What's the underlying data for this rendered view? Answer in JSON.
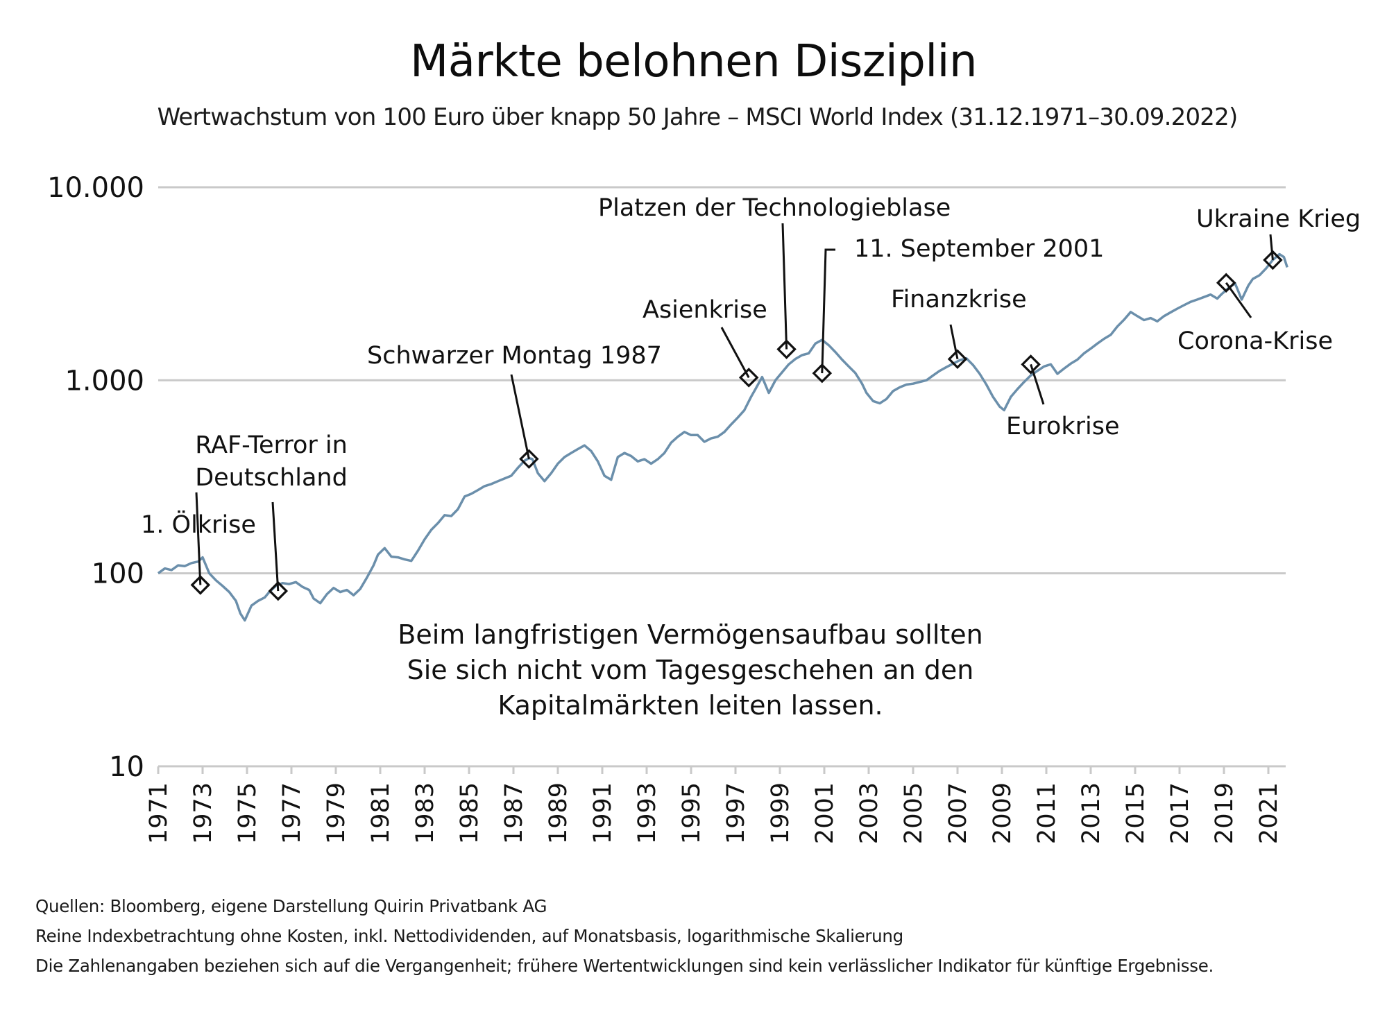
{
  "title": "Märkte belohnen Disziplin",
  "subtitle": "Wertwachstum von 100 Euro über knapp 50 Jahre – MSCI World Index (31.12.1971–30.09.2022)",
  "footer": {
    "source": "Quellen: Bloomberg, eigene Darstellung Quirin Privatbank AG",
    "method": "Reine Indexbetrachtung ohne Kosten, inkl. Nettodividenden, auf Monatsbasis, logarithmische Skalierung",
    "disclaimer": "Die Zahlenangaben beziehen sich auf die Vergangenheit; frühere Wertentwicklungen sind kein verlässlicher Indikator für künftige Ergebnisse."
  },
  "colors": {
    "line": "#6b8fab",
    "grid": "#c9c9c9",
    "marker": "#111111",
    "text": "#111111"
  },
  "chart_data": {
    "type": "line",
    "title": "Märkte belohnen Disziplin",
    "xlabel": "",
    "ylabel": "",
    "yscale": "log",
    "ylim": [
      10,
      10000
    ],
    "xlim": [
      1971,
      2021.8
    ],
    "grid": true,
    "y_ticks": [
      {
        "value": 10000,
        "label": "10.000"
      },
      {
        "value": 1000,
        "label": "1.000"
      },
      {
        "value": 100,
        "label": "100"
      },
      {
        "value": 10,
        "label": "10"
      }
    ],
    "x_ticks": [
      "1971",
      "1973",
      "1975",
      "1977",
      "1979",
      "1981",
      "1983",
      "1985",
      "1987",
      "1989",
      "1991",
      "1993",
      "1995",
      "1997",
      "1999",
      "2001",
      "2003",
      "2005",
      "2007",
      "2009",
      "2011",
      "2013",
      "2015",
      "2017",
      "2019",
      "2021"
    ],
    "series": [
      {
        "name": "MSCI World Index (100 Euro)",
        "x": [
          1971.0,
          1971.3,
          1971.6,
          1971.9,
          1972.2,
          1972.5,
          1972.8,
          1973.0,
          1973.3,
          1973.6,
          1973.9,
          1974.2,
          1974.5,
          1974.7,
          1974.9,
          1975.2,
          1975.5,
          1975.8,
          1976.0,
          1976.3,
          1976.6,
          1976.9,
          1977.2,
          1977.5,
          1977.8,
          1978.0,
          1978.3,
          1978.6,
          1978.9,
          1979.2,
          1979.5,
          1979.8,
          1980.1,
          1980.4,
          1980.7,
          1980.9,
          1981.2,
          1981.5,
          1981.8,
          1982.1,
          1982.4,
          1982.7,
          1983.0,
          1983.3,
          1983.6,
          1983.9,
          1984.2,
          1984.5,
          1984.8,
          1985.1,
          1985.4,
          1985.7,
          1986.0,
          1986.3,
          1986.6,
          1986.9,
          1987.2,
          1987.5,
          1987.7,
          1987.85,
          1988.1,
          1988.4,
          1988.7,
          1989.0,
          1989.3,
          1989.6,
          1989.9,
          1990.2,
          1990.5,
          1990.8,
          1991.1,
          1991.4,
          1991.7,
          1992.0,
          1992.3,
          1992.6,
          1992.9,
          1993.2,
          1993.5,
          1993.8,
          1994.1,
          1994.4,
          1994.7,
          1995.0,
          1995.3,
          1995.6,
          1995.9,
          1996.2,
          1996.5,
          1996.8,
          1997.1,
          1997.4,
          1997.7,
          1997.9,
          1998.2,
          1998.5,
          1998.8,
          1999.1,
          1999.4,
          1999.7,
          2000.0,
          2000.3,
          2000.6,
          2000.9,
          2001.2,
          2001.5,
          2001.8,
          2002.1,
          2002.4,
          2002.7,
          2002.9,
          2003.2,
          2003.5,
          2003.8,
          2004.1,
          2004.4,
          2004.7,
          2005.0,
          2005.3,
          2005.6,
          2005.9,
          2006.2,
          2006.5,
          2006.8,
          2007.1,
          2007.4,
          2007.7,
          2008.0,
          2008.3,
          2008.6,
          2008.9,
          2009.1,
          2009.4,
          2009.7,
          2010.0,
          2010.3,
          2010.6,
          2010.9,
          2011.2,
          2011.5,
          2011.8,
          2012.1,
          2012.4,
          2012.7,
          2013.0,
          2013.3,
          2013.6,
          2013.9,
          2014.2,
          2014.5,
          2014.8,
          2015.1,
          2015.4,
          2015.7,
          2016.0,
          2016.3,
          2016.6,
          2016.9,
          2017.2,
          2017.5,
          2017.8,
          2018.1,
          2018.4,
          2018.7,
          2018.9,
          2019.2,
          2019.5,
          2019.8,
          2020.1,
          2020.3,
          2020.6,
          2020.9,
          2021.2,
          2021.5,
          2021.7,
          2021.85
        ],
        "y": [
          100,
          106,
          104,
          110,
          109,
          113,
          115,
          121,
          100,
          92,
          86,
          80,
          72,
          62,
          57,
          68,
          72,
          75,
          80,
          86,
          89,
          88,
          90,
          85,
          82,
          74,
          70,
          78,
          84,
          80,
          82,
          77,
          83,
          95,
          110,
          125,
          135,
          122,
          121,
          118,
          116,
          131,
          150,
          168,
          182,
          200,
          198,
          215,
          250,
          258,
          270,
          283,
          290,
          300,
          310,
          320,
          352,
          383,
          395,
          391,
          330,
          300,
          330,
          370,
          400,
          420,
          440,
          460,
          430,
          380,
          320,
          305,
          400,
          420,
          405,
          380,
          390,
          370,
          390,
          420,
          475,
          510,
          540,
          520,
          520,
          480,
          500,
          510,
          540,
          590,
          640,
          700,
          820,
          900,
          1040,
          860,
          1000,
          1100,
          1210,
          1290,
          1350,
          1380,
          1550,
          1620,
          1520,
          1400,
          1280,
          1180,
          1090,
          960,
          860,
          780,
          760,
          800,
          880,
          920,
          950,
          960,
          980,
          1000,
          1060,
          1120,
          1170,
          1220,
          1270,
          1300,
          1200,
          1080,
          950,
          820,
          730,
          700,
          820,
          900,
          980,
          1060,
          1120,
          1180,
          1210,
          1080,
          1150,
          1220,
          1280,
          1380,
          1460,
          1550,
          1640,
          1720,
          1900,
          2060,
          2260,
          2150,
          2050,
          2100,
          2020,
          2150,
          2250,
          2350,
          2450,
          2550,
          2620,
          2700,
          2780,
          2650,
          2800,
          3000,
          3180,
          2620,
          3100,
          3350,
          3500,
          3800,
          4200,
          4500,
          4350,
          3850
        ]
      }
    ],
    "annotations": [
      {
        "label": "1. Ölkrise",
        "x": 1972.9,
        "y": 87
      },
      {
        "label": "RAF-Terror in Deutschland",
        "lines": [
          "RAF-Terror in",
          "Deutschland"
        ],
        "x": 1976.4,
        "y": 81
      },
      {
        "label": "Schwarzer Montag 1987",
        "x": 1987.7,
        "y": 391
      },
      {
        "label": "Asienkrise",
        "x": 1997.6,
        "y": 1033
      },
      {
        "label": "Platzen der Technologieblase",
        "x": 1999.3,
        "y": 1448
      },
      {
        "label": "11. September 2001",
        "x": 2000.9,
        "y": 1088
      },
      {
        "label": "Finanzkrise",
        "x": 2007.0,
        "y": 1288
      },
      {
        "label": "Eurokrise",
        "x": 2010.3,
        "y": 1209
      },
      {
        "label": "Corona-Krise",
        "x": 2019.1,
        "y": 3199
      },
      {
        "label": "Ukraine Krieg",
        "x": 2021.2,
        "y": 4197
      }
    ],
    "note": [
      "Beim langfristigen Vermögensaufbau sollten",
      "Sie sich nicht vom Tagesgeschehen an den",
      "Kapitalmärkten leiten lassen."
    ]
  }
}
